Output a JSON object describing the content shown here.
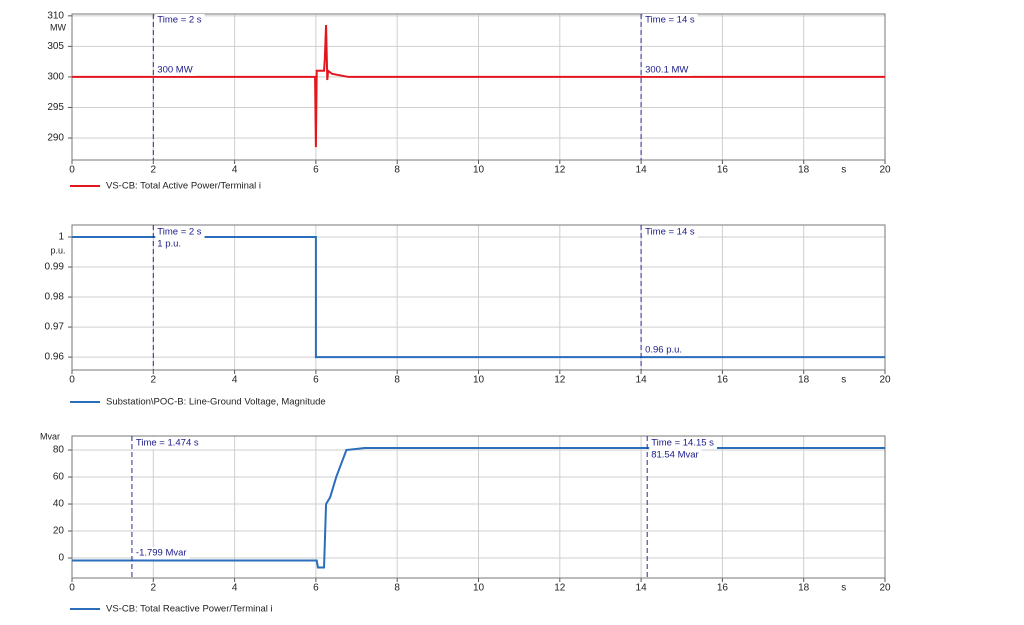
{
  "chart_data": [
    {
      "type": "line",
      "yunit": "MW",
      "xlabel": "s",
      "legend": "VS-CB: Total Active Power/Terminal i",
      "xlim": [
        0,
        20
      ],
      "xticks": [
        0,
        2,
        4,
        6,
        8,
        10,
        12,
        14,
        16,
        18,
        20
      ],
      "ylim": [
        286.4,
        310.3
      ],
      "yticks": [
        290,
        295,
        300,
        305,
        310
      ],
      "grid": true,
      "series": [
        {
          "name": "VS-CB: Total Active Power/Terminal i",
          "color": "#e3161e",
          "x": [
            0,
            5.98,
            6.0,
            6.02,
            6.05,
            6.2,
            6.22,
            6.25,
            6.28,
            6.3,
            6.4,
            6.8,
            20
          ],
          "values": [
            300,
            300,
            288.5,
            301,
            301,
            301,
            303,
            308.5,
            299.5,
            301,
            300.5,
            300,
            300
          ]
        }
      ],
      "cursors": [
        {
          "x": 2,
          "labels": [
            "Time = 2 s",
            "300 MW"
          ]
        },
        {
          "x": 14,
          "labels": [
            "Time = 14 s",
            "300.1 MW"
          ]
        }
      ]
    },
    {
      "type": "line",
      "yunit": "p.u.",
      "xlabel": "s",
      "legend": "Substation\\POC-B: Line-Ground Voltage, Magnitude",
      "xlim": [
        0,
        20
      ],
      "xticks": [
        0,
        2,
        4,
        6,
        8,
        10,
        12,
        14,
        16,
        18,
        20
      ],
      "ylim": [
        0.9557,
        1.004
      ],
      "yticks": [
        0.96,
        0.97,
        0.98,
        0.99,
        1
      ],
      "grid": true,
      "series": [
        {
          "name": "Substation\\POC-B: Line-Ground Voltage, Magnitude",
          "color": "#2a6ebb",
          "x": [
            0,
            6,
            6,
            20
          ],
          "values": [
            1,
            1,
            0.96,
            0.96
          ]
        }
      ],
      "cursors": [
        {
          "x": 2,
          "labels": [
            "Time = 2 s",
            "1 p.u."
          ]
        },
        {
          "x": 14,
          "labels": [
            "Time = 14 s",
            "0.96 p.u."
          ]
        }
      ]
    },
    {
      "type": "line",
      "yunit": "Mvar",
      "xlabel": "s",
      "legend": "VS-CB: Total Reactive Power/Terminal i",
      "xlim": [
        0,
        20
      ],
      "xticks": [
        0,
        2,
        4,
        6,
        8,
        10,
        12,
        14,
        16,
        18,
        20
      ],
      "ylim": [
        -14.8,
        90.4
      ],
      "yticks": [
        0,
        20,
        40,
        60,
        80
      ],
      "grid": true,
      "series": [
        {
          "name": "VS-CB: Total Reactive Power/Terminal i",
          "color": "#2a6ebb",
          "x": [
            0,
            6.02,
            6.05,
            6.2,
            6.25,
            6.35,
            6.5,
            6.75,
            7.2,
            20
          ],
          "values": [
            -1.8,
            -1.8,
            -7,
            -7,
            40,
            45,
            60,
            80,
            81.54,
            81.54
          ]
        }
      ],
      "cursors": [
        {
          "x": 1.474,
          "labels": [
            "Time = 1.474 s",
            "-1.799 Mvar"
          ]
        },
        {
          "x": 14.15,
          "labels": [
            "Time = 14.15 s",
            "81.54 Mvar"
          ]
        }
      ]
    }
  ]
}
